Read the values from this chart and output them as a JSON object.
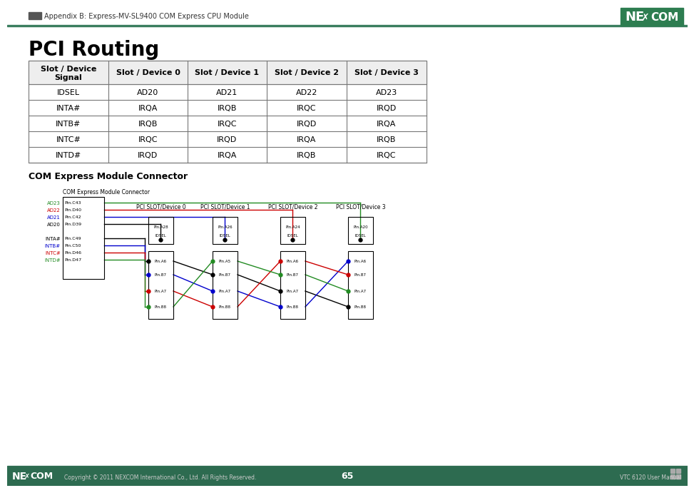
{
  "title": "PCI Routing",
  "header_top": "Appendix B: Express-MV-SL9400 COM Express CPU Module",
  "page_number": "65",
  "footer_right": "VTC 6120 User Manual",
  "footer_copyright": "Copyright © 2011 NEXCOM International Co., Ltd. All Rights Reserved.",
  "table": {
    "headers": [
      "Slot / Device\nSignal",
      "Slot / Device 0",
      "Slot / Device 1",
      "Slot / Device 2",
      "Slot / Device 3"
    ],
    "rows": [
      [
        "IDSEL",
        "AD20",
        "AD21",
        "AD22",
        "AD23"
      ],
      [
        "INTA#",
        "IRQA",
        "IRQB",
        "IRQC",
        "IRQD"
      ],
      [
        "INTB#",
        "IRQB",
        "IRQC",
        "IRQD",
        "IRQA"
      ],
      [
        "INTC#",
        "IRQC",
        "IRQD",
        "IRQA",
        "IRQB"
      ],
      [
        "INTD#",
        "IRQD",
        "IRQA",
        "IRQB",
        "IRQC"
      ]
    ]
  },
  "bg_color": "#ffffff",
  "header_line_color": "#3a7d5e",
  "footer_bg": "#2d6b50",
  "nexcom_green": "#2d7d50",
  "ad_colors": [
    "#228B22",
    "#cc0000",
    "#0000cc",
    "#000000"
  ],
  "int_colors": [
    "#000000",
    "#0000cc",
    "#cc0000",
    "#228B22"
  ],
  "ad_labels": [
    "AD23",
    "AD22",
    "AD21",
    "AD20"
  ],
  "ad_pins": [
    "Pin.C43",
    "Pin.D40",
    "Pin.C42",
    "Pin.D39"
  ],
  "int_labels": [
    "INTA#",
    "INTB#",
    "INTC#",
    "INTD#"
  ],
  "int_pins": [
    "Pin.C49",
    "Pin.C50",
    "Pin.D46",
    "Pin.D47"
  ],
  "slot_labels": [
    "PCI SLOT/Device 0",
    "PCI SLOT/Device 1",
    "PCI SLOT/Device 2",
    "PCI SLOT/Device 3"
  ]
}
